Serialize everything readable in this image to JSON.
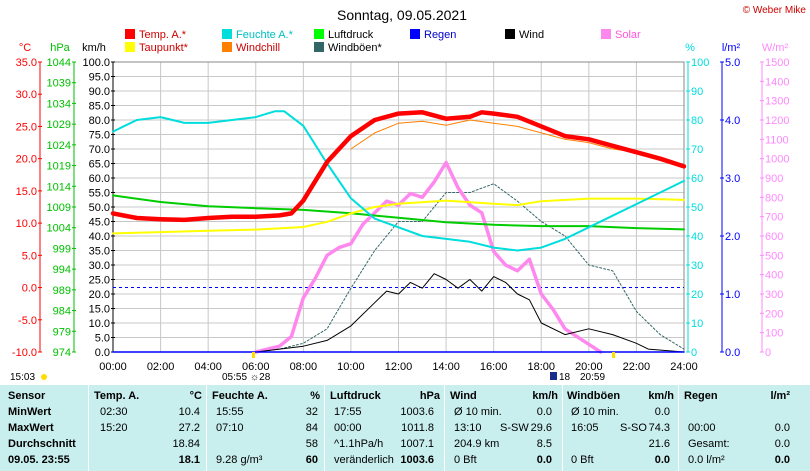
{
  "chart_data": {
    "type": "line",
    "title": "Sonntag, 09.05.2021",
    "credit": "© Weber Mike",
    "x_ticks": [
      "00:00",
      "02:00",
      "04:00",
      "06:00",
      "08:00",
      "10:00",
      "12:00",
      "14:00",
      "16:00",
      "18:00",
      "20:00",
      "22:00",
      "24:00"
    ],
    "axes": {
      "temp_c": {
        "label": "°C",
        "ylim": [
          -10,
          35
        ],
        "ticks": [
          "35.0",
          "30.0",
          "25.0",
          "20.0",
          "15.0",
          "10.0",
          "5.0",
          "0.0",
          "-5.0",
          "-10.0"
        ],
        "color": "#ff0000"
      },
      "pressure_hpa": {
        "label": "hPa",
        "ylim": [
          974,
          1044
        ],
        "ticks": [
          "1044",
          "1039",
          "1034",
          "1029",
          "1024",
          "1019",
          "1014",
          "1009",
          "1004",
          "999",
          "994",
          "989",
          "984",
          "979",
          "974"
        ],
        "color": "#00c000"
      },
      "wind_kmh": {
        "label": "km/h",
        "ylim": [
          0,
          100
        ],
        "ticks": [
          "100.0",
          "95.0",
          "90.0",
          "85.0",
          "80.0",
          "75.0",
          "70.0",
          "65.0",
          "60.0",
          "55.0",
          "50.0",
          "45.0",
          "40.0",
          "35.0",
          "30.0",
          "25.0",
          "20.0",
          "15.0",
          "10.0",
          "5.0",
          "0.0"
        ],
        "color": "#000000"
      },
      "humidity_pct": {
        "label": "%",
        "ylim": [
          0,
          100
        ],
        "ticks": [
          "100",
          "90",
          "80",
          "70",
          "60",
          "50",
          "40",
          "30",
          "20",
          "10",
          "0"
        ],
        "color": "#00dddd"
      },
      "rain_lm2": {
        "label": "l/m²",
        "ylim": [
          0,
          5
        ],
        "ticks": [
          "5.0",
          "4.0",
          "3.0",
          "2.0",
          "1.0",
          "0.0"
        ],
        "color": "#0000ff"
      },
      "solar_wm2": {
        "label": "W/m²",
        "ylim": [
          0,
          1500
        ],
        "ticks": [
          "1500",
          "1400",
          "1300",
          "1200",
          "1100",
          "1000",
          "900",
          "800",
          "700",
          "600",
          "500",
          "400",
          "300",
          "200",
          "100",
          "0"
        ],
        "color": "#ff88ff"
      }
    },
    "legend": [
      {
        "name": "Temp. A.*",
        "color": "#ff0000"
      },
      {
        "name": "Feuchte A.*",
        "color": "#00dddd"
      },
      {
        "name": "Luftdruck",
        "color": "#00ff00"
      },
      {
        "name": "Regen",
        "color": "#0000ff"
      },
      {
        "name": "Wind",
        "color": "#000000"
      },
      {
        "name": "Solar",
        "color": "#ff88ee"
      },
      {
        "name": "Taupunkt*",
        "color": "#ffff00"
      },
      {
        "name": "Windchill",
        "color": "#ff8000"
      },
      {
        "name": "Windböen*",
        "color": "#336666"
      }
    ],
    "series": [
      {
        "name": "Temp. A.*",
        "axis": "temp_c",
        "color": "#ff0000",
        "x": [
          0,
          1,
          2,
          3,
          4,
          5,
          6,
          7,
          7.5,
          8,
          8.5,
          9,
          10,
          11,
          12,
          13,
          14,
          15,
          15.5,
          16,
          17,
          18,
          19,
          20,
          21,
          22,
          23,
          24
        ],
        "y": [
          11.5,
          10.8,
          10.6,
          10.5,
          10.8,
          11.0,
          11.0,
          11.2,
          11.5,
          13.5,
          16.5,
          19.5,
          23.5,
          26.0,
          27.0,
          27.2,
          26.2,
          26.5,
          27.2,
          27.0,
          26.5,
          25.0,
          23.5,
          23.0,
          22.0,
          21.0,
          20.0,
          18.8
        ]
      },
      {
        "name": "Windchill",
        "axis": "temp_c",
        "color": "#ff8000",
        "x": [
          10,
          11,
          12,
          13,
          14,
          15,
          16,
          17,
          18,
          19,
          20,
          21,
          22
        ],
        "y": [
          21.5,
          24.0,
          25.5,
          25.8,
          25.2,
          26.0,
          25.5,
          25.0,
          24.0,
          23.0,
          22.5,
          21.5,
          21.0
        ]
      },
      {
        "name": "Feuchte A.*",
        "axis": "humidity_pct",
        "color": "#00dddd",
        "x": [
          0,
          1,
          2,
          3,
          4,
          5,
          6,
          6.8,
          7.2,
          8,
          9,
          10,
          11,
          12,
          13,
          14,
          15,
          16,
          17,
          18,
          19,
          20,
          21,
          22,
          23,
          24
        ],
        "y": [
          76,
          80,
          81,
          79,
          79,
          80,
          81,
          83,
          83,
          78,
          65,
          53,
          46,
          43,
          40,
          39,
          38,
          36,
          35,
          36,
          39,
          43,
          47,
          51,
          55,
          59
        ]
      },
      {
        "name": "Luftdruck",
        "axis": "pressure_hpa",
        "color": "#00cc00",
        "x": [
          0,
          2,
          4,
          6,
          8,
          10,
          12,
          14,
          16,
          18,
          20,
          22,
          24
        ],
        "y": [
          1011.8,
          1010.2,
          1009.2,
          1008.7,
          1008.3,
          1007.5,
          1006.4,
          1005.3,
          1004.7,
          1004.4,
          1004.4,
          1003.9,
          1003.6
        ]
      },
      {
        "name": "Taupunkt*",
        "axis": "temp_c",
        "color": "#ffff00",
        "x": [
          0,
          2,
          4,
          6,
          8,
          9,
          10,
          11,
          12,
          14,
          16,
          17,
          18,
          20,
          22,
          24
        ],
        "y": [
          8.4,
          8.6,
          8.8,
          9.0,
          9.4,
          10.2,
          11.5,
          12.5,
          13.0,
          13.5,
          13.0,
          12.8,
          13.4,
          13.8,
          13.8,
          13.6
        ]
      },
      {
        "name": "Wind",
        "axis": "wind_kmh",
        "color": "#000000",
        "x": [
          0,
          6,
          7,
          8,
          9,
          10,
          11,
          11.5,
          12,
          12.5,
          13,
          13.5,
          14,
          14.5,
          15,
          15.5,
          16,
          16.5,
          17,
          17.5,
          18,
          19,
          20,
          21,
          22,
          22.5,
          24
        ],
        "y": [
          0,
          0,
          1,
          2,
          4,
          9,
          17,
          21,
          20,
          24,
          22,
          27,
          25,
          22,
          25,
          21,
          26,
          24,
          20,
          18,
          10,
          6,
          8,
          6,
          3,
          1,
          0
        ]
      },
      {
        "name": "Windböen*",
        "axis": "wind_kmh",
        "color": "#336666",
        "x": [
          0,
          6,
          7,
          8,
          9,
          10,
          11,
          12,
          13,
          14,
          15,
          16,
          17,
          18,
          19,
          20,
          21,
          22,
          23,
          24
        ],
        "y": [
          0,
          0,
          1,
          3,
          8,
          22,
          35,
          45,
          45,
          55,
          55,
          58,
          52,
          45,
          40,
          30,
          28,
          14,
          6,
          1
        ]
      },
      {
        "name": "Solar",
        "axis": "solar_wm2",
        "color": "#ff88ee",
        "x": [
          6,
          7,
          7.5,
          8,
          8.5,
          9,
          9.5,
          10,
          10.5,
          11,
          11.5,
          12,
          12.5,
          13,
          13.5,
          14,
          14.5,
          15,
          15.5,
          16,
          16.5,
          17,
          17.5,
          18,
          18.5,
          19,
          20,
          20.5
        ],
        "y": [
          0,
          30,
          80,
          280,
          380,
          500,
          540,
          560,
          660,
          720,
          780,
          760,
          820,
          800,
          880,
          980,
          850,
          760,
          720,
          520,
          450,
          420,
          480,
          300,
          220,
          120,
          40,
          0
        ]
      },
      {
        "name": "Regen",
        "axis": "rain_lm2",
        "color": "#0000ff",
        "x": [
          0,
          24
        ],
        "y": [
          0,
          0
        ]
      }
    ],
    "reference_line": {
      "axis": "temp_c",
      "y": 0.0,
      "color": "#0000ff",
      "style": "dashed"
    },
    "bottom_markers": {
      "left": "15:03",
      "sunrise": "05:55",
      "moon": "☼28",
      "sun_pos": "18",
      "sunset": "20:59"
    }
  },
  "stats": {
    "headers": [
      {
        "label": "Sensor"
      },
      {
        "label": "Temp. A.",
        "unit": "°C"
      },
      {
        "label": "Feuchte A.",
        "unit": "%"
      },
      {
        "label": "Luftdruck",
        "unit": "hPa"
      },
      {
        "label": "Wind",
        "unit": "km/h"
      },
      {
        "label": "Windböen",
        "unit": "km/h"
      },
      {
        "label": "Regen",
        "unit": "l/m²"
      }
    ],
    "rows": [
      {
        "label": "MinWert",
        "temp_time": "02:30",
        "temp_val": "10.4",
        "hum_time": "15:55",
        "hum_val": "32",
        "press_time": "17:55",
        "press_val": "1003.6",
        "wind_a": "Ø 10 min.",
        "wind_b": "",
        "wind_val": "0.0",
        "gust_a": "Ø 10 min.",
        "gust_b": "",
        "gust_val": "0.0",
        "rain_a": "",
        "rain_val": ""
      },
      {
        "label": "MaxWert",
        "temp_time": "15:20",
        "temp_val": "27.2",
        "hum_time": "07:10",
        "hum_val": "84",
        "press_time": "00:00",
        "press_val": "1011.8",
        "wind_a": "13:10",
        "wind_b": "S-SW",
        "wind_val": "29.6",
        "gust_a": "16:05",
        "gust_b": "S-SO",
        "gust_val": "74.3",
        "rain_a": "00:00",
        "rain_val": "0.0"
      },
      {
        "label": "Durchschnitt",
        "temp_time": "",
        "temp_val": "18.84",
        "hum_time": "",
        "hum_val": "58",
        "press_time": "^1.1hPa/h",
        "press_val": "1007.1",
        "wind_a": "204.9 km",
        "wind_b": "",
        "wind_val": "8.5",
        "gust_a": "",
        "gust_b": "",
        "gust_val": "21.6",
        "rain_a": "Gesamt:",
        "rain_val": "0.0"
      },
      {
        "label": "09.05. 23:55",
        "temp_time": "",
        "temp_val": "18.1",
        "hum_time": "9.28 g/m³",
        "hum_val": "60",
        "press_time": "veränderlich",
        "press_val": "1003.6",
        "wind_a": "0 Bft",
        "wind_b": "",
        "wind_val": "0.0",
        "gust_a": "0 Bft",
        "gust_b": "",
        "gust_val": "0.0",
        "rain_a": "0.0 l/m²",
        "rain_val": "0.0"
      }
    ]
  }
}
